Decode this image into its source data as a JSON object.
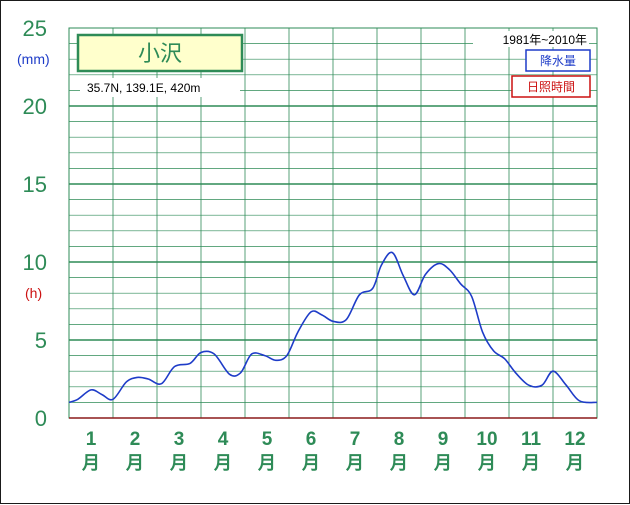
{
  "station": {
    "name": "小沢",
    "coords": "35.7N,  139.1E,  420m",
    "period": "1981年~2010年"
  },
  "legend": {
    "precip_label": "降水量",
    "sun_label": "日照時間",
    "precip_color": "#1e3cc8",
    "sun_color": "#cc1111"
  },
  "units": {
    "left_top": "(mm)",
    "left_mid": "(h)"
  },
  "chart_data": {
    "type": "line",
    "xlabel": "",
    "ylabel": "",
    "ylim": [
      0,
      25
    ],
    "y_ticks": [
      "0",
      "5",
      "10",
      "15",
      "20",
      "25"
    ],
    "grid": true,
    "month_labels": [
      "1",
      "2",
      "3",
      "4",
      "5",
      "6",
      "7",
      "8",
      "9",
      "10",
      "11",
      "12"
    ],
    "month_suffix": "月",
    "series": [
      {
        "name": "降水量",
        "color": "#1e3cc8",
        "x": [
          0.0,
          0.2,
          0.5,
          0.75,
          1.0,
          1.3,
          1.55,
          1.8,
          2.1,
          2.4,
          2.75,
          3.0,
          3.3,
          3.65,
          3.9,
          4.15,
          4.45,
          4.7,
          4.95,
          5.2,
          5.5,
          5.75,
          6.0,
          6.3,
          6.6,
          6.9,
          7.1,
          7.35,
          7.6,
          7.85,
          8.1,
          8.4,
          8.65,
          8.9,
          9.15,
          9.4,
          9.65,
          9.9,
          10.15,
          10.45,
          10.75,
          11.0,
          11.3,
          11.6,
          12.0
        ],
        "y": [
          1.0,
          1.2,
          1.8,
          1.5,
          1.2,
          2.3,
          2.6,
          2.5,
          2.2,
          3.3,
          3.5,
          4.2,
          4.1,
          2.8,
          2.9,
          4.1,
          4.0,
          3.7,
          4.0,
          5.5,
          6.8,
          6.6,
          6.2,
          6.3,
          7.9,
          8.3,
          9.8,
          10.6,
          9.1,
          7.9,
          9.2,
          9.9,
          9.5,
          8.6,
          7.8,
          5.5,
          4.3,
          3.8,
          2.9,
          2.1,
          2.1,
          3.0,
          2.1,
          1.1,
          1.0
        ]
      }
    ]
  }
}
